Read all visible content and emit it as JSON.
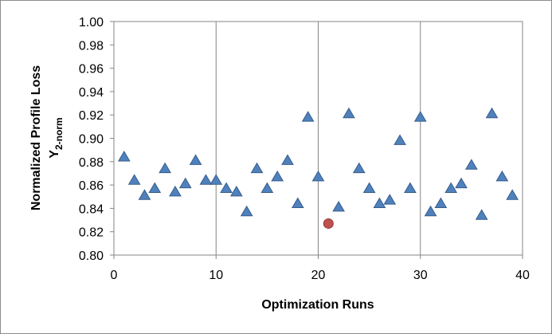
{
  "chart_data": {
    "type": "scatter",
    "title": "",
    "xlabel": "Optimization Runs",
    "ylabel_main": "Normalized Profile Loss",
    "ylabel_symbol": "Y",
    "ylabel_subscript": "2-norm",
    "xlim": [
      0,
      40
    ],
    "ylim": [
      0.8,
      1.0
    ],
    "x_ticks": [
      0,
      10,
      20,
      30,
      40
    ],
    "x_tick_labels": [
      "0",
      "10",
      "20",
      "30",
      "40"
    ],
    "y_ticks": [
      0.8,
      0.82,
      0.84,
      0.86,
      0.88,
      0.9,
      0.92,
      0.94,
      0.96,
      0.98,
      1.0
    ],
    "y_tick_labels": [
      "0.80",
      "0.82",
      "0.84",
      "0.86",
      "0.88",
      "0.90",
      "0.92",
      "0.94",
      "0.96",
      "0.98",
      "1.00"
    ],
    "grid": "vertical",
    "legend": "none",
    "series": [
      {
        "marker": "triangle",
        "color": "#4f81bd",
        "edge_color": "#385d8a",
        "points": [
          {
            "x": 1,
            "y": 0.884
          },
          {
            "x": 2,
            "y": 0.864
          },
          {
            "x": 3,
            "y": 0.851
          },
          {
            "x": 4,
            "y": 0.857
          },
          {
            "x": 5,
            "y": 0.874
          },
          {
            "x": 6,
            "y": 0.854
          },
          {
            "x": 7,
            "y": 0.861
          },
          {
            "x": 8,
            "y": 0.881
          },
          {
            "x": 9,
            "y": 0.864
          },
          {
            "x": 10,
            "y": 0.864
          },
          {
            "x": 11,
            "y": 0.857
          },
          {
            "x": 12,
            "y": 0.854
          },
          {
            "x": 13,
            "y": 0.837
          },
          {
            "x": 14,
            "y": 0.874
          },
          {
            "x": 15,
            "y": 0.857
          },
          {
            "x": 16,
            "y": 0.867
          },
          {
            "x": 17,
            "y": 0.881
          },
          {
            "x": 18,
            "y": 0.844
          },
          {
            "x": 19,
            "y": 0.918
          },
          {
            "x": 20,
            "y": 0.867
          },
          {
            "x": 22,
            "y": 0.841
          },
          {
            "x": 23,
            "y": 0.921
          },
          {
            "x": 24,
            "y": 0.874
          },
          {
            "x": 25,
            "y": 0.857
          },
          {
            "x": 26,
            "y": 0.844
          },
          {
            "x": 27,
            "y": 0.847
          },
          {
            "x": 28,
            "y": 0.898
          },
          {
            "x": 29,
            "y": 0.857
          },
          {
            "x": 30,
            "y": 0.918
          },
          {
            "x": 31,
            "y": 0.837
          },
          {
            "x": 32,
            "y": 0.844
          },
          {
            "x": 33,
            "y": 0.857
          },
          {
            "x": 34,
            "y": 0.861
          },
          {
            "x": 35,
            "y": 0.877
          },
          {
            "x": 36,
            "y": 0.834
          },
          {
            "x": 37,
            "y": 0.921
          },
          {
            "x": 38,
            "y": 0.867
          },
          {
            "x": 39,
            "y": 0.851
          }
        ]
      },
      {
        "marker": "circle",
        "color": "#c0504d",
        "edge_color": "#8c3836",
        "points": [
          {
            "x": 21,
            "y": 0.827
          }
        ]
      }
    ]
  }
}
